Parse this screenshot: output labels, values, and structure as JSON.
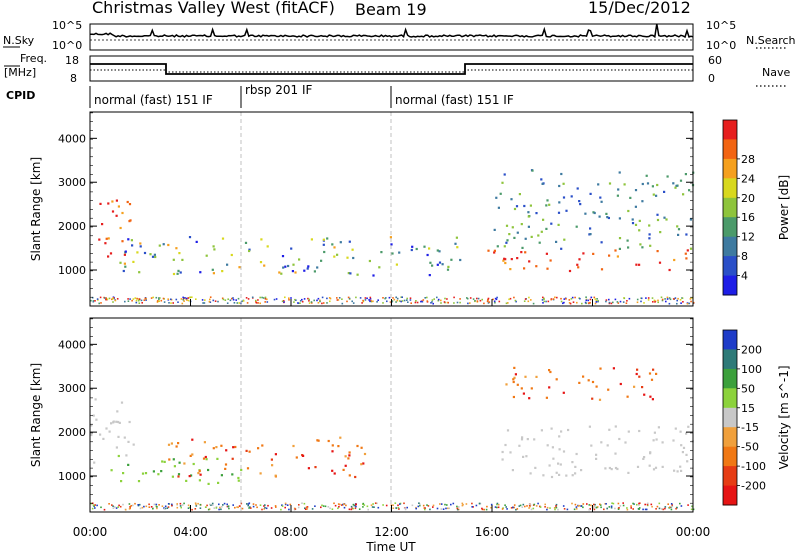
{
  "header": {
    "title": "Christmas Valley West (fitACF)",
    "beam": "Beam 19",
    "date": "15/Dec/2012"
  },
  "strip": {
    "nsky_label": "N.Sky",
    "nsearch_label": "N.Search",
    "nsky_ticks": [
      "10^5",
      "10^0"
    ],
    "nsky_right_ticks": [
      "10^5",
      "10^0"
    ],
    "freq_label": "Freq.",
    "freq_unit": "[MHz]",
    "freq_ticks": [
      "18",
      "8"
    ],
    "nave_label": "Nave",
    "nave_ticks": [
      "60",
      "0"
    ],
    "cpid_label": "CPID",
    "cpid_segments": [
      {
        "label": "normal (fast) 151 IF",
        "start": 0,
        "end": 6
      },
      {
        "label": "rbsp 201 IF",
        "start": 6,
        "end": 12
      },
      {
        "label": "normal (fast) 151 IF",
        "start": 12,
        "end": 24
      }
    ]
  },
  "chart_data": [
    {
      "type": "heatmap",
      "name": "power",
      "ylabel": "Slant Range [km]",
      "xlim": [
        0,
        24
      ],
      "ylim": [
        180,
        4600
      ],
      "yticks": [
        "1000",
        "2000",
        "3000",
        "4000"
      ],
      "colorbar_label": "Power [dB]",
      "colorbar_ticks": [
        "4",
        "8",
        "12",
        "16",
        "20",
        "24",
        "28"
      ],
      "colorbar_colors": [
        "#1e1ee6",
        "#2a4fc8",
        "#3e7aa0",
        "#4b9a6a",
        "#8ec43c",
        "#d8d81e",
        "#f5a01e",
        "#f26412",
        "#e61e1e"
      ],
      "features": [
        {
          "t0": 0.0,
          "t1": 1.6,
          "r0": 1200,
          "r1": 2700,
          "level": "high"
        },
        {
          "t0": 1.0,
          "t1": 15.0,
          "r0": 900,
          "r1": 1800,
          "level": "medium"
        },
        {
          "t0": 15.8,
          "t1": 24.0,
          "r0": 1000,
          "r1": 1500,
          "level": "high"
        },
        {
          "t0": 16.0,
          "t1": 24.0,
          "r0": 1500,
          "r1": 3300,
          "level": "low"
        }
      ]
    },
    {
      "type": "heatmap",
      "name": "velocity",
      "ylabel": "Slant Range [km]",
      "xlabel": "Time UT",
      "xlim": [
        0,
        24
      ],
      "ylim": [
        180,
        4600
      ],
      "yticks": [
        "1000",
        "2000",
        "3000",
        "4000"
      ],
      "xticks": [
        "00:00",
        "04:00",
        "08:00",
        "12:00",
        "16:00",
        "20:00",
        "00:00"
      ],
      "colorbar_label": "Velocity [m s^-1]",
      "colorbar_ticks": [
        "200",
        "100",
        "50",
        "15",
        "-15",
        "-50",
        "-100",
        "-200"
      ],
      "colorbar_colors": [
        "#1e3cc8",
        "#2e7a78",
        "#3ca03c",
        "#8cd23c",
        "#c8c8c8",
        "#f0a03c",
        "#f07814",
        "#e63c14",
        "#e61414"
      ],
      "features": [
        {
          "t0": 0.0,
          "t1": 1.8,
          "r0": 1300,
          "r1": 2800,
          "level": "ground"
        },
        {
          "t0": 0.8,
          "t1": 6.0,
          "r0": 800,
          "r1": 1500,
          "level": "toward"
        },
        {
          "t0": 3.0,
          "t1": 11.0,
          "r0": 1000,
          "r1": 1900,
          "level": "away"
        },
        {
          "t0": 16.0,
          "t1": 24.0,
          "r0": 1000,
          "r1": 2200,
          "level": "ground"
        },
        {
          "t0": 16.5,
          "t1": 22.5,
          "r0": 2700,
          "r1": 3500,
          "level": "away"
        }
      ]
    }
  ]
}
